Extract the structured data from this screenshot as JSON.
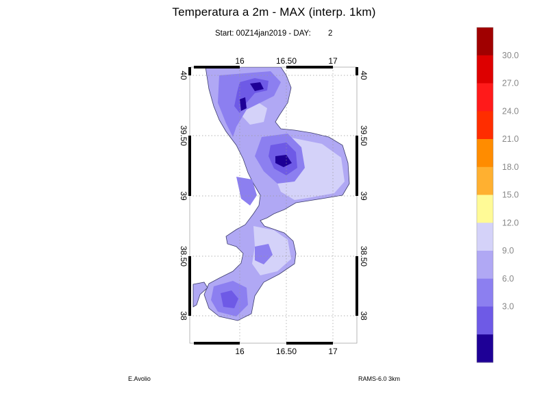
{
  "header": {
    "title": "Temperatura a 2m - MAX (interp. 1km)",
    "start_label": "Start: 00Z14jan2019  - DAY:",
    "day_value": "2"
  },
  "map": {
    "lon_ticks": [
      "16",
      "16.50",
      "17"
    ],
    "lat_ticks": [
      "40",
      "39.50",
      "39",
      "38.50",
      "38"
    ],
    "grid": true,
    "projection": "lat-lon"
  },
  "legend": {
    "labels": [
      "30.0",
      "27.0",
      "24.0",
      "21.0",
      "18.0",
      "15.0",
      "12.0",
      "9.0",
      "6.0",
      "3.0"
    ],
    "colors": [
      "#a00000",
      "#dd0000",
      "#ff1a1a",
      "#ff2d00",
      "#ff8c00",
      "#ffb030",
      "#fffa96",
      "#d4d2f9",
      "#b0a8f4",
      "#8c7ff0",
      "#6e5ae6",
      "#1e0096"
    ]
  },
  "footer": {
    "author": "E.Avolio",
    "model": "RAMS-6.0 3km"
  }
}
